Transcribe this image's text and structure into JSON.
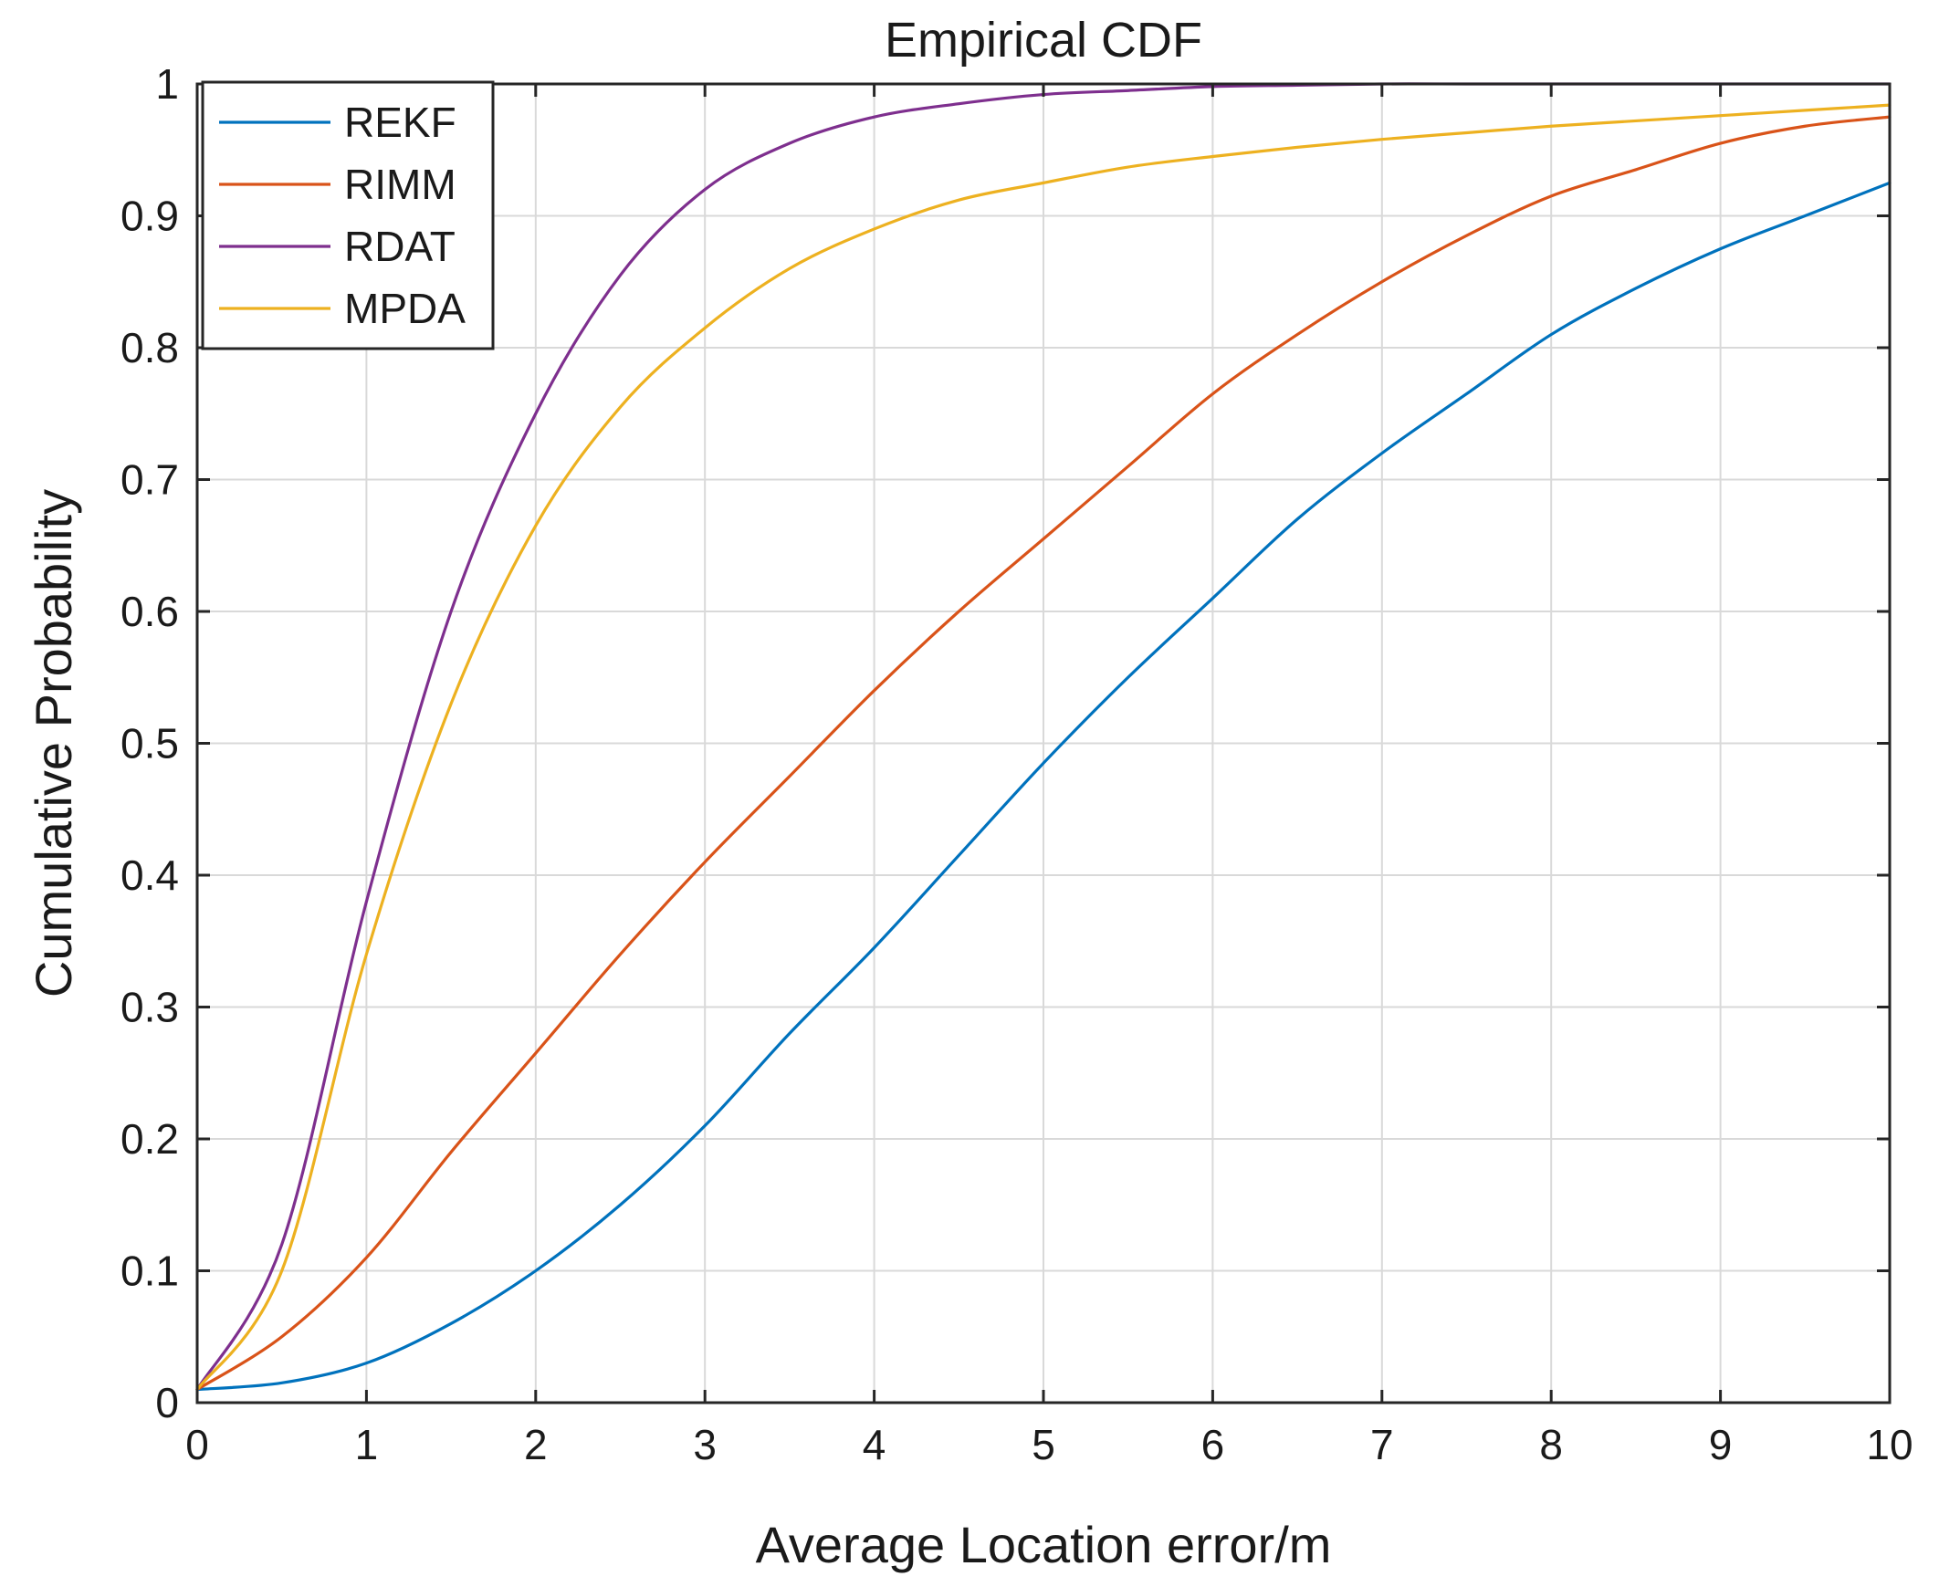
{
  "chart_data": {
    "type": "line",
    "title": "Empirical CDF",
    "xlabel": "Average Location error/m",
    "ylabel": "Cumulative Probability",
    "xlim": [
      0,
      10
    ],
    "ylim": [
      0,
      1
    ],
    "xticks": [
      0,
      1,
      2,
      3,
      4,
      5,
      6,
      7,
      8,
      9,
      10
    ],
    "xtick_labels": [
      "0",
      "1",
      "2",
      "3",
      "4",
      "5",
      "6",
      "7",
      "8",
      "9",
      "10"
    ],
    "yticks": [
      0,
      0.1,
      0.2,
      0.3,
      0.4,
      0.5,
      0.6,
      0.7,
      0.8,
      0.9,
      1
    ],
    "ytick_labels": [
      "0",
      "0.1",
      "0.2",
      "0.3",
      "0.4",
      "0.5",
      "0.6",
      "0.7",
      "0.8",
      "0.9",
      "1"
    ],
    "grid": true,
    "legend_position": "top-left",
    "x": [
      0,
      0.5,
      1,
      1.5,
      2,
      2.5,
      3,
      3.5,
      4,
      4.5,
      5,
      5.5,
      6,
      6.5,
      7,
      7.5,
      8,
      8.5,
      9,
      9.5,
      10
    ],
    "series": [
      {
        "name": "REKF",
        "color": "#0072BD",
        "values": [
          0.01,
          0.015,
          0.03,
          0.06,
          0.1,
          0.15,
          0.21,
          0.28,
          0.345,
          0.415,
          0.485,
          0.55,
          0.61,
          0.67,
          0.72,
          0.765,
          0.81,
          0.845,
          0.875,
          0.9,
          0.925
        ]
      },
      {
        "name": "RIMM",
        "color": "#D95319",
        "values": [
          0.01,
          0.05,
          0.11,
          0.19,
          0.265,
          0.34,
          0.41,
          0.475,
          0.54,
          0.6,
          0.655,
          0.71,
          0.765,
          0.81,
          0.85,
          0.885,
          0.915,
          0.935,
          0.955,
          0.968,
          0.975
        ]
      },
      {
        "name": "RDAT",
        "color": "#7E2F8E",
        "values": [
          0.01,
          0.12,
          0.38,
          0.6,
          0.75,
          0.855,
          0.92,
          0.955,
          0.975,
          0.985,
          0.992,
          0.995,
          0.998,
          0.999,
          1.0,
          1.0,
          1.0,
          1.0,
          1.0,
          1.0,
          1.0
        ]
      },
      {
        "name": "MPDA",
        "color": "#EDB120",
        "values": [
          0.01,
          0.1,
          0.34,
          0.53,
          0.665,
          0.755,
          0.815,
          0.86,
          0.89,
          0.912,
          0.925,
          0.937,
          0.945,
          0.952,
          0.958,
          0.963,
          0.968,
          0.972,
          0.976,
          0.98,
          0.984
        ]
      }
    ]
  }
}
